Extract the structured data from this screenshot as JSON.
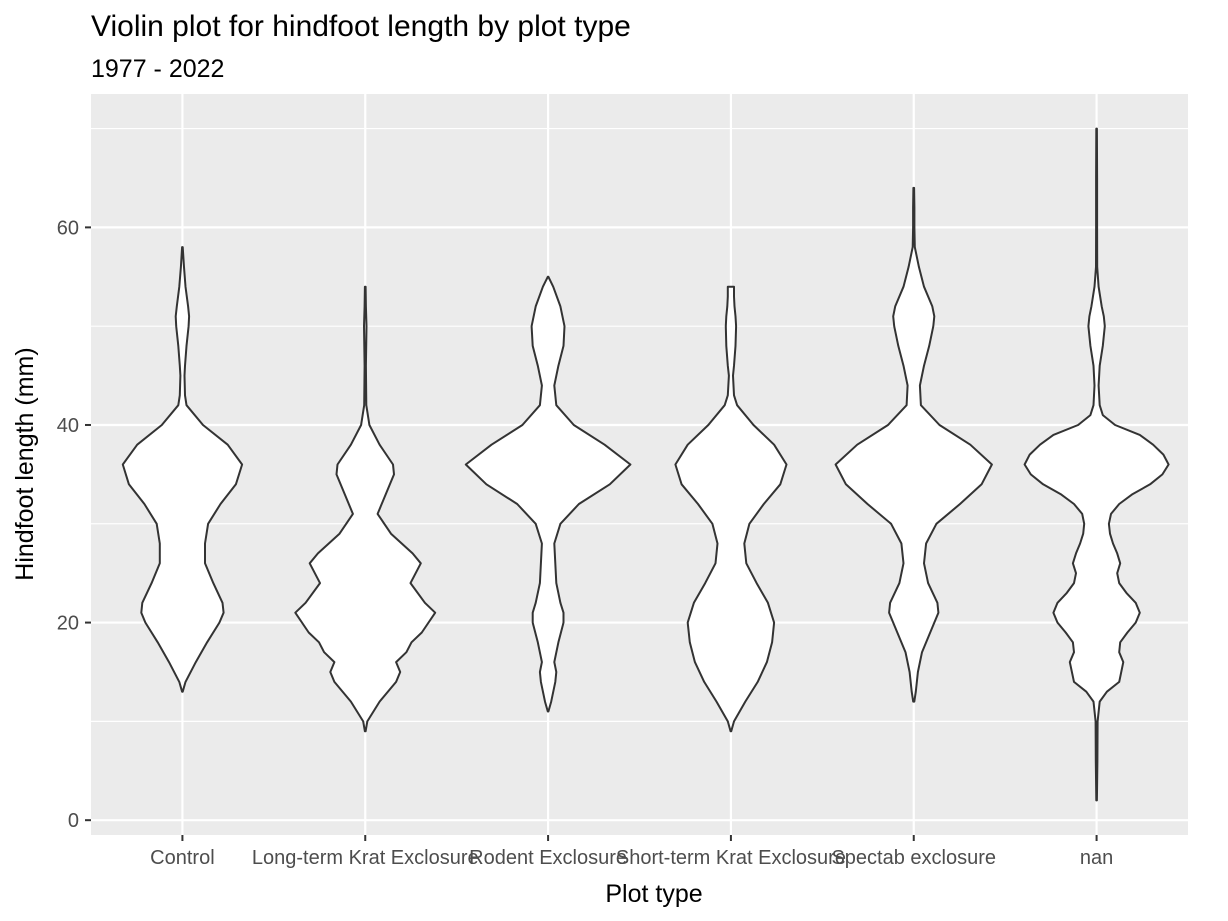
{
  "chart_data": {
    "type": "violin",
    "title": "Violin plot for hindfoot length by plot type",
    "subtitle": "1977 - 2022",
    "xlabel": "Plot type",
    "ylabel": "Hindfoot length (mm)",
    "ylim": [
      -1.5,
      73.5
    ],
    "yticks": [
      0,
      20,
      40,
      60
    ],
    "grid": true,
    "colors": {
      "panel_background": "#ebebeb",
      "grid": "#ffffff",
      "violin_fill": "#ffffff",
      "violin_outline": "#333333",
      "tick_label": "#4d4d4d"
    },
    "categories": [
      "Control",
      "Long-term Krat Exclosure",
      "Rodent Exclosure",
      "Short-term Krat Exclosure",
      "Spectab exclosure",
      "nan"
    ],
    "series": [
      {
        "category": "Control",
        "min": 13,
        "max": 58,
        "profile": [
          [
            13,
            0.3
          ],
          [
            14,
            3
          ],
          [
            16,
            13
          ],
          [
            18,
            24
          ],
          [
            20,
            36
          ],
          [
            21,
            40
          ],
          [
            22,
            39
          ],
          [
            24,
            30
          ],
          [
            26,
            22
          ],
          [
            28,
            22
          ],
          [
            30,
            25
          ],
          [
            32,
            37
          ],
          [
            34,
            52
          ],
          [
            36,
            58
          ],
          [
            38,
            44
          ],
          [
            40,
            20
          ],
          [
            42,
            4
          ],
          [
            43,
            2.5
          ],
          [
            45,
            2
          ],
          [
            46,
            2.5
          ],
          [
            48,
            4
          ],
          [
            50,
            6
          ],
          [
            51,
            6.5
          ],
          [
            52,
            5.5
          ],
          [
            54,
            3
          ],
          [
            56,
            1.5
          ],
          [
            58,
            0.3
          ]
        ]
      },
      {
        "category": "Long-term Krat Exclosure",
        "min": 9,
        "max": 54,
        "profile": [
          [
            9,
            0.3
          ],
          [
            10,
            2
          ],
          [
            12,
            14
          ],
          [
            14,
            30
          ],
          [
            15,
            34
          ],
          [
            16,
            30
          ],
          [
            17,
            40
          ],
          [
            18,
            45
          ],
          [
            19,
            55
          ],
          [
            21,
            68
          ],
          [
            22,
            58
          ],
          [
            24,
            44
          ],
          [
            26,
            54
          ],
          [
            27,
            46
          ],
          [
            29,
            25
          ],
          [
            31,
            12
          ],
          [
            33,
            20
          ],
          [
            35,
            28
          ],
          [
            36,
            27
          ],
          [
            38,
            14
          ],
          [
            40,
            4
          ],
          [
            42,
            1
          ],
          [
            46,
            0.6
          ],
          [
            50,
            1.2
          ],
          [
            52,
            0.6
          ],
          [
            54,
            0.3
          ]
        ]
      },
      {
        "category": "Rodent Exclosure",
        "min": 11,
        "max": 55,
        "profile": [
          [
            11,
            0.3
          ],
          [
            12,
            3
          ],
          [
            14,
            7
          ],
          [
            15,
            8
          ],
          [
            16,
            6
          ],
          [
            18,
            10
          ],
          [
            20,
            15
          ],
          [
            21,
            15
          ],
          [
            22,
            12
          ],
          [
            24,
            8
          ],
          [
            26,
            7
          ],
          [
            28,
            6
          ],
          [
            30,
            12
          ],
          [
            32,
            30
          ],
          [
            34,
            60
          ],
          [
            36,
            80
          ],
          [
            38,
            55
          ],
          [
            40,
            25
          ],
          [
            42,
            8
          ],
          [
            44,
            6
          ],
          [
            46,
            10
          ],
          [
            48,
            15
          ],
          [
            50,
            16
          ],
          [
            52,
            12
          ],
          [
            54,
            5
          ],
          [
            55,
            0.3
          ]
        ]
      },
      {
        "category": "Short-term Krat Exclosure",
        "min": 9,
        "max": 54,
        "profile": [
          [
            9,
            0.3
          ],
          [
            10,
            3
          ],
          [
            12,
            14
          ],
          [
            14,
            26
          ],
          [
            16,
            35
          ],
          [
            18,
            40
          ],
          [
            20,
            42
          ],
          [
            22,
            36
          ],
          [
            24,
            25
          ],
          [
            26,
            15
          ],
          [
            28,
            13
          ],
          [
            30,
            18
          ],
          [
            32,
            32
          ],
          [
            34,
            48
          ],
          [
            36,
            54
          ],
          [
            38,
            42
          ],
          [
            40,
            22
          ],
          [
            42,
            6
          ],
          [
            43,
            3
          ],
          [
            45,
            2
          ],
          [
            46,
            3
          ],
          [
            48,
            4.5
          ],
          [
            50,
            5
          ],
          [
            51,
            4.5
          ],
          [
            52,
            3.5
          ],
          [
            53,
            3
          ],
          [
            54,
            3
          ]
        ]
      },
      {
        "category": "Spectab exclosure",
        "min": 12,
        "max": 64,
        "profile": [
          [
            12,
            0.5
          ],
          [
            13,
            2
          ],
          [
            15,
            4
          ],
          [
            17,
            8
          ],
          [
            19,
            16
          ],
          [
            21,
            24
          ],
          [
            22,
            23
          ],
          [
            24,
            14
          ],
          [
            26,
            10
          ],
          [
            28,
            12
          ],
          [
            30,
            22
          ],
          [
            32,
            45
          ],
          [
            34,
            66
          ],
          [
            36,
            76
          ],
          [
            38,
            55
          ],
          [
            40,
            25
          ],
          [
            42,
            7
          ],
          [
            44,
            6
          ],
          [
            46,
            10
          ],
          [
            48,
            15
          ],
          [
            50,
            19
          ],
          [
            51,
            20
          ],
          [
            52,
            18
          ],
          [
            54,
            10
          ],
          [
            56,
            5
          ],
          [
            58,
            1
          ],
          [
            60,
            0.6
          ],
          [
            62,
            0.6
          ],
          [
            64,
            0.3
          ]
        ]
      },
      {
        "category": "nan",
        "min": 2,
        "max": 70,
        "profile": [
          [
            2,
            0.3
          ],
          [
            6,
            0.8
          ],
          [
            10,
            1
          ],
          [
            12,
            3
          ],
          [
            13,
            10
          ],
          [
            14,
            22
          ],
          [
            16,
            26
          ],
          [
            17,
            22
          ],
          [
            18,
            23
          ],
          [
            19,
            30
          ],
          [
            20,
            38
          ],
          [
            21,
            42
          ],
          [
            22,
            38
          ],
          [
            23,
            29
          ],
          [
            24,
            22
          ],
          [
            25,
            20
          ],
          [
            26,
            23
          ],
          [
            27,
            20
          ],
          [
            28,
            16
          ],
          [
            29,
            13
          ],
          [
            30,
            12
          ],
          [
            31,
            14
          ],
          [
            32,
            22
          ],
          [
            33,
            35
          ],
          [
            34,
            52
          ],
          [
            35,
            64
          ],
          [
            36,
            70
          ],
          [
            37,
            65
          ],
          [
            38,
            55
          ],
          [
            39,
            42
          ],
          [
            40,
            18
          ],
          [
            41,
            6
          ],
          [
            42,
            3
          ],
          [
            44,
            2
          ],
          [
            46,
            3
          ],
          [
            48,
            6
          ],
          [
            50,
            8
          ],
          [
            51,
            7
          ],
          [
            52,
            5
          ],
          [
            54,
            2
          ],
          [
            56,
            0.6
          ],
          [
            60,
            0.5
          ],
          [
            65,
            0.5
          ],
          [
            70,
            0.3
          ]
        ]
      }
    ]
  }
}
